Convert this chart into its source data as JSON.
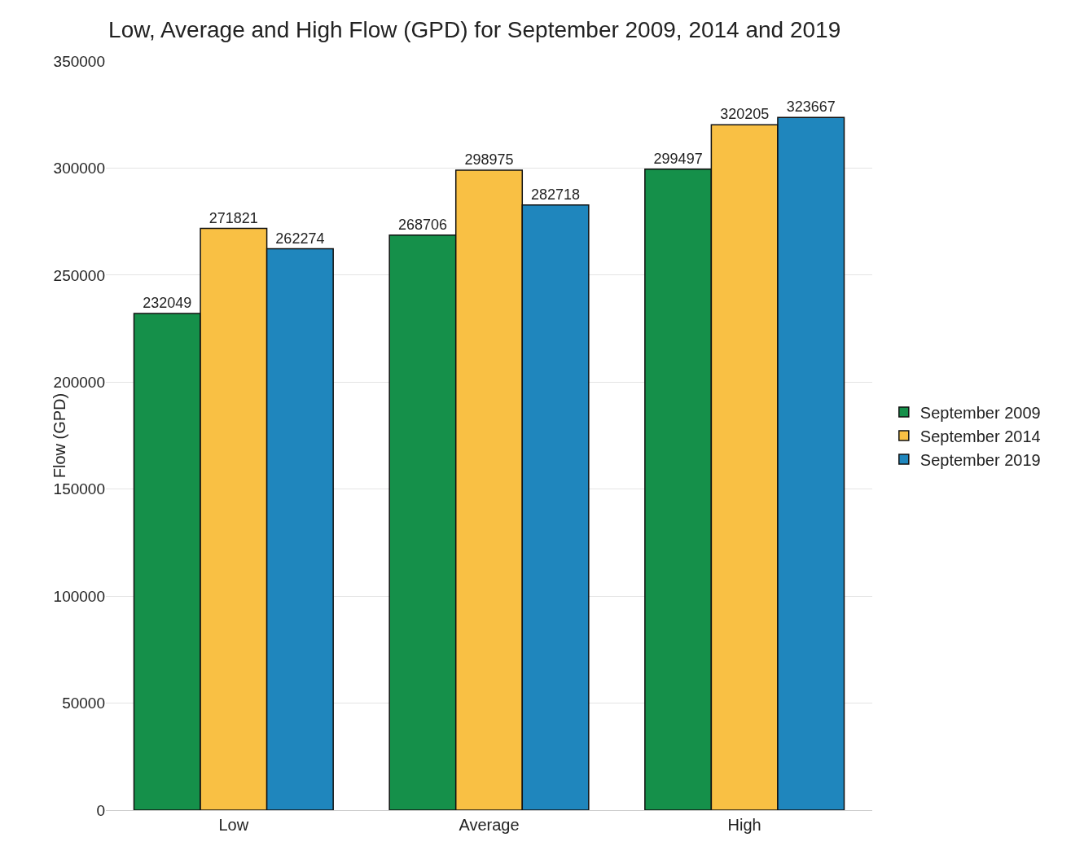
{
  "chart_data": {
    "type": "bar",
    "title": "Low, Average and High Flow (GPD) for September 2009, 2014 and 2019",
    "ylabel": "Flow (GPD)",
    "categories": [
      "Low",
      "Average",
      "High"
    ],
    "series": [
      {
        "name": "September 2009",
        "color": "#15904a",
        "values": [
          232049,
          268706,
          299497
        ]
      },
      {
        "name": "September 2014",
        "color": "#f9c044",
        "values": [
          271821,
          298975,
          320205
        ]
      },
      {
        "name": "September 2019",
        "color": "#1f86bd",
        "values": [
          262274,
          282718,
          323667
        ]
      }
    ],
    "ylim": [
      0,
      350000
    ],
    "yticks": [
      0,
      50000,
      100000,
      150000,
      200000,
      250000,
      300000,
      350000
    ],
    "grid": "y",
    "legend": "right",
    "data_labels": true
  }
}
